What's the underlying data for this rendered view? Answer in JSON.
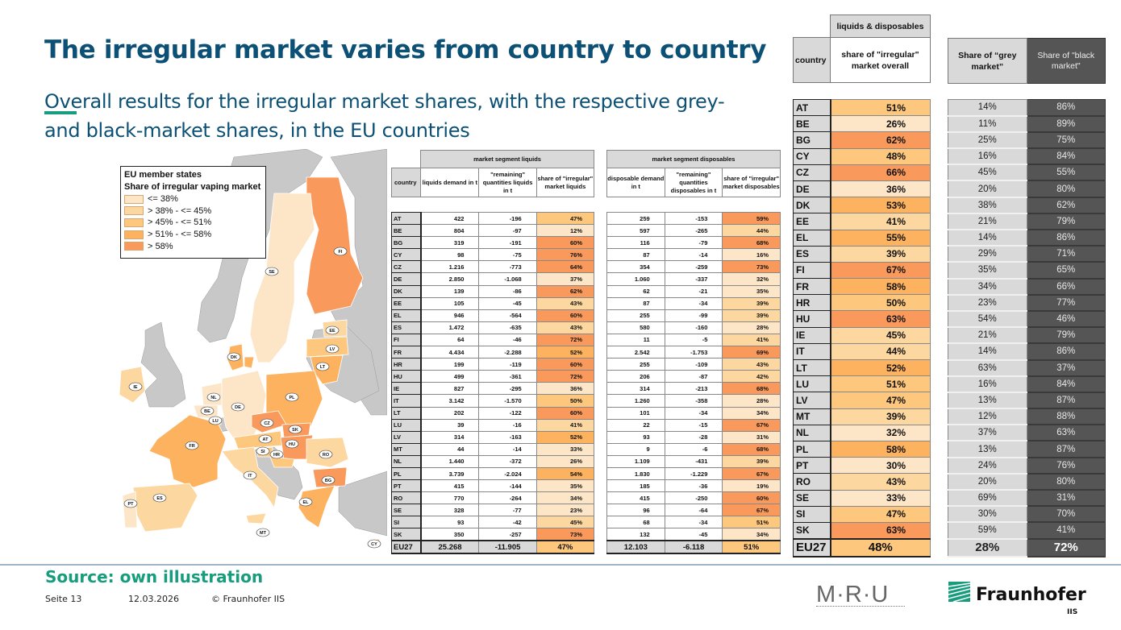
{
  "header": {
    "title": "The irregular market varies from country to country",
    "subtitle": "Overall results for the irregular market shares, with the respective grey- and black-market shares, in the EU countries"
  },
  "colors": {
    "title": "#0c5075",
    "accent": "#179c7d",
    "bin1": "#fde6c8",
    "bin2": "#fdd7a0",
    "bin3": "#fdc77e",
    "bin4": "#fcb25e",
    "bin5": "#f99a5c",
    "non_eu": "#c8c8c8",
    "grey_market": "#d9d9d9",
    "black_market": "#555555"
  },
  "map": {
    "legend_title_1": "EU member states",
    "legend_title_2": "Share of irregular vaping market",
    "legend_items": [
      "<= 38%",
      "> 38% - <= 45%",
      "> 45% - <= 51%",
      "> 51% - <= 58%",
      "> 58%"
    ],
    "labels": [
      "FI",
      "SE",
      "EE",
      "LV",
      "LT",
      "DK",
      "IE",
      "NL",
      "PL",
      "DE",
      "BE",
      "LU",
      "CZ",
      "SK",
      "AT",
      "HU",
      "FR",
      "SI",
      "HR",
      "RO",
      "IT",
      "BG",
      "ES",
      "PT",
      "EL",
      "MT",
      "CY"
    ]
  },
  "liquids": {
    "segment": "market segment liquids",
    "col_country": "country",
    "col_demand": "liquids demand in t",
    "col_remaining": "\"remaining\" quantities liquids in t",
    "col_share": "share of \"irregular\" market liquids",
    "rows": [
      {
        "c": "AT",
        "d": "422",
        "r": "-196",
        "s": "47%"
      },
      {
        "c": "BE",
        "d": "804",
        "r": "-97",
        "s": "12%"
      },
      {
        "c": "BG",
        "d": "319",
        "r": "-191",
        "s": "60%"
      },
      {
        "c": "CY",
        "d": "98",
        "r": "-75",
        "s": "76%"
      },
      {
        "c": "CZ",
        "d": "1.216",
        "r": "-773",
        "s": "64%"
      },
      {
        "c": "DE",
        "d": "2.850",
        "r": "-1.068",
        "s": "37%"
      },
      {
        "c": "DK",
        "d": "139",
        "r": "-86",
        "s": "62%"
      },
      {
        "c": "EE",
        "d": "105",
        "r": "-45",
        "s": "43%"
      },
      {
        "c": "EL",
        "d": "946",
        "r": "-564",
        "s": "60%"
      },
      {
        "c": "ES",
        "d": "1.472",
        "r": "-635",
        "s": "43%"
      },
      {
        "c": "FI",
        "d": "64",
        "r": "-46",
        "s": "72%"
      },
      {
        "c": "FR",
        "d": "4.434",
        "r": "-2.288",
        "s": "52%"
      },
      {
        "c": "HR",
        "d": "199",
        "r": "-119",
        "s": "60%"
      },
      {
        "c": "HU",
        "d": "499",
        "r": "-361",
        "s": "72%"
      },
      {
        "c": "IE",
        "d": "827",
        "r": "-295",
        "s": "36%"
      },
      {
        "c": "IT",
        "d": "3.142",
        "r": "-1.570",
        "s": "50%"
      },
      {
        "c": "LT",
        "d": "202",
        "r": "-122",
        "s": "60%"
      },
      {
        "c": "LU",
        "d": "39",
        "r": "-16",
        "s": "41%"
      },
      {
        "c": "LV",
        "d": "314",
        "r": "-163",
        "s": "52%"
      },
      {
        "c": "MT",
        "d": "44",
        "r": "-14",
        "s": "33%"
      },
      {
        "c": "NL",
        "d": "1.440",
        "r": "-372",
        "s": "26%"
      },
      {
        "c": "PL",
        "d": "3.739",
        "r": "-2.024",
        "s": "54%"
      },
      {
        "c": "PT",
        "d": "415",
        "r": "-144",
        "s": "35%"
      },
      {
        "c": "RO",
        "d": "770",
        "r": "-264",
        "s": "34%"
      },
      {
        "c": "SE",
        "d": "328",
        "r": "-77",
        "s": "23%"
      },
      {
        "c": "SI",
        "d": "93",
        "r": "-42",
        "s": "45%"
      },
      {
        "c": "SK",
        "d": "350",
        "r": "-257",
        "s": "73%"
      }
    ],
    "total": {
      "c": "EU27",
      "d": "25.268",
      "r": "-11.905",
      "s": "47%"
    }
  },
  "disposables": {
    "segment": "market segment disposables",
    "col_demand": "disposable demand in t",
    "col_remaining": "\"remaining\" quantities disposables in t",
    "col_share": "share of \"irregular\" market disposables",
    "rows": [
      {
        "d": "259",
        "r": "-153",
        "s": "59%"
      },
      {
        "d": "597",
        "r": "-265",
        "s": "44%"
      },
      {
        "d": "116",
        "r": "-79",
        "s": "68%"
      },
      {
        "d": "87",
        "r": "-14",
        "s": "16%"
      },
      {
        "d": "354",
        "r": "-259",
        "s": "73%"
      },
      {
        "d": "1.060",
        "r": "-337",
        "s": "32%"
      },
      {
        "d": "62",
        "r": "-21",
        "s": "35%"
      },
      {
        "d": "87",
        "r": "-34",
        "s": "39%"
      },
      {
        "d": "255",
        "r": "-99",
        "s": "39%"
      },
      {
        "d": "580",
        "r": "-160",
        "s": "28%"
      },
      {
        "d": "11",
        "r": "-5",
        "s": "41%"
      },
      {
        "d": "2.542",
        "r": "-1.753",
        "s": "69%"
      },
      {
        "d": "255",
        "r": "-109",
        "s": "43%"
      },
      {
        "d": "206",
        "r": "-87",
        "s": "42%"
      },
      {
        "d": "314",
        "r": "-213",
        "s": "68%"
      },
      {
        "d": "1.260",
        "r": "-358",
        "s": "28%"
      },
      {
        "d": "101",
        "r": "-34",
        "s": "34%"
      },
      {
        "d": "22",
        "r": "-15",
        "s": "67%"
      },
      {
        "d": "93",
        "r": "-28",
        "s": "31%"
      },
      {
        "d": "9",
        "r": "-6",
        "s": "68%"
      },
      {
        "d": "1.109",
        "r": "-431",
        "s": "39%"
      },
      {
        "d": "1.830",
        "r": "-1.229",
        "s": "67%"
      },
      {
        "d": "185",
        "r": "-36",
        "s": "19%"
      },
      {
        "d": "415",
        "r": "-250",
        "s": "60%"
      },
      {
        "d": "96",
        "r": "-64",
        "s": "67%"
      },
      {
        "d": "68",
        "r": "-34",
        "s": "51%"
      },
      {
        "d": "132",
        "r": "-45",
        "s": "34%"
      }
    ],
    "total": {
      "d": "12.103",
      "r": "-6.118",
      "s": "51%"
    }
  },
  "overall": {
    "segment": "liquids & disposables",
    "col_country": "country",
    "col_share": "share of \"irregular\" market overall",
    "col_grey": "Share of “grey market”",
    "col_black": "Share of \"black market\"",
    "rows": [
      {
        "c": "AT",
        "s": "51%",
        "g": "14%",
        "b": "86%"
      },
      {
        "c": "BE",
        "s": "26%",
        "g": "11%",
        "b": "89%"
      },
      {
        "c": "BG",
        "s": "62%",
        "g": "25%",
        "b": "75%"
      },
      {
        "c": "CY",
        "s": "48%",
        "g": "16%",
        "b": "84%"
      },
      {
        "c": "CZ",
        "s": "66%",
        "g": "45%",
        "b": "55%"
      },
      {
        "c": "DE",
        "s": "36%",
        "g": "20%",
        "b": "80%"
      },
      {
        "c": "DK",
        "s": "53%",
        "g": "38%",
        "b": "62%"
      },
      {
        "c": "EE",
        "s": "41%",
        "g": "21%",
        "b": "79%"
      },
      {
        "c": "EL",
        "s": "55%",
        "g": "14%",
        "b": "86%"
      },
      {
        "c": "ES",
        "s": "39%",
        "g": "29%",
        "b": "71%"
      },
      {
        "c": "FI",
        "s": "67%",
        "g": "35%",
        "b": "65%"
      },
      {
        "c": "FR",
        "s": "58%",
        "g": "34%",
        "b": "66%"
      },
      {
        "c": "HR",
        "s": "50%",
        "g": "23%",
        "b": "77%"
      },
      {
        "c": "HU",
        "s": "63%",
        "g": "54%",
        "b": "46%"
      },
      {
        "c": "IE",
        "s": "45%",
        "g": "21%",
        "b": "79%"
      },
      {
        "c": "IT",
        "s": "44%",
        "g": "14%",
        "b": "86%"
      },
      {
        "c": "LT",
        "s": "52%",
        "g": "63%",
        "b": "37%"
      },
      {
        "c": "LU",
        "s": "51%",
        "g": "16%",
        "b": "84%"
      },
      {
        "c": "LV",
        "s": "47%",
        "g": "13%",
        "b": "87%"
      },
      {
        "c": "MT",
        "s": "39%",
        "g": "12%",
        "b": "88%"
      },
      {
        "c": "NL",
        "s": "32%",
        "g": "37%",
        "b": "63%"
      },
      {
        "c": "PL",
        "s": "58%",
        "g": "13%",
        "b": "87%"
      },
      {
        "c": "PT",
        "s": "30%",
        "g": "24%",
        "b": "76%"
      },
      {
        "c": "RO",
        "s": "43%",
        "g": "20%",
        "b": "80%"
      },
      {
        "c": "SE",
        "s": "33%",
        "g": "69%",
        "b": "31%"
      },
      {
        "c": "SI",
        "s": "47%",
        "g": "30%",
        "b": "70%"
      },
      {
        "c": "SK",
        "s": "63%",
        "g": "59%",
        "b": "41%"
      }
    ],
    "total": {
      "c": "EU27",
      "s": "48%",
      "g": "28%",
      "b": "72%"
    }
  },
  "footer": {
    "source": "Source: own illustration",
    "page": "Seite 13",
    "date": "12.03.2026",
    "copyright": "© Fraunhofer IIS",
    "logo_mru": "M·R·U",
    "logo_fraunhofer": "Fraunhofer",
    "logo_iis": "IIS"
  }
}
